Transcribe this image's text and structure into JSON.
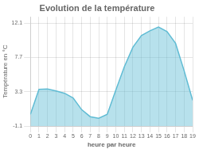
{
  "chart_data": {
    "type": "area",
    "title": "Evolution de la température",
    "x_label": "heure par heure",
    "y_label": "Température en °C",
    "x": [
      0,
      1,
      2,
      3,
      4,
      5,
      6,
      7,
      8,
      9,
      10,
      11,
      12,
      13,
      14,
      15,
      16,
      17,
      18,
      19
    ],
    "values": [
      0.4,
      3.6,
      3.65,
      3.4,
      3.1,
      2.5,
      1.0,
      0.1,
      -0.1,
      0.4,
      3.5,
      6.5,
      9.0,
      10.5,
      11.1,
      11.6,
      11.0,
      9.5,
      6.0,
      2.2
    ],
    "color": "#60bcd4",
    "xlim": [
      0,
      19
    ],
    "xticks": [
      0,
      1,
      2,
      3,
      4,
      5,
      6,
      7,
      8,
      9,
      10,
      11,
      12,
      13,
      14,
      15,
      16,
      17,
      18,
      19
    ],
    "ylim": [
      -1.1,
      12.9
    ],
    "yticks": [
      -1.1,
      3.3,
      7.7,
      12.1
    ],
    "grid": true
  }
}
